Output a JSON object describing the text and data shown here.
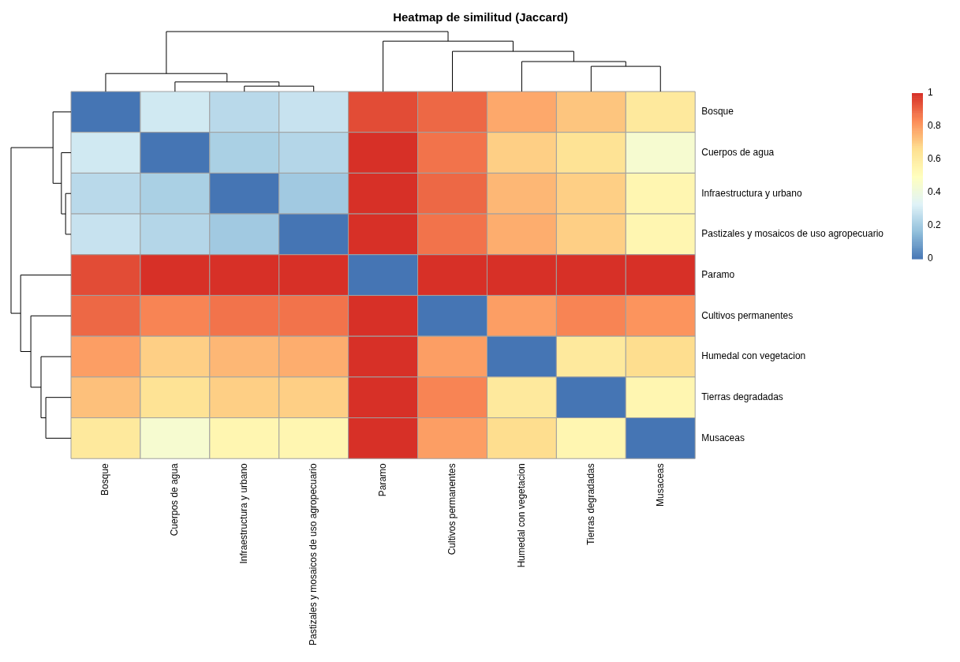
{
  "chart_data": {
    "type": "heatmap",
    "title": "Heatmap de similitud (Jaccard)",
    "categories": [
      "Bosque",
      "Cuerpos de agua",
      "Infraestructura y urbano",
      "Pastizales y mosaicos de uso agropecuario",
      "Paramo",
      "Cultivos permanentes",
      "Humedal con vegetacion",
      "Tierras degradadas",
      "Musaceas"
    ],
    "y_categories": [
      "Bosque",
      "Cuerpos de agua",
      "Infraestructura y urbano",
      "Pastizales y mosaicos de uso agropecuario",
      "Paramo",
      "Cultivos permanentes",
      "Humedal con vegetacion",
      "Tierras degradadas",
      "Musaceas"
    ],
    "cells": [
      [
        0,
        0.3,
        0.25,
        0.28,
        0.95,
        0.9,
        0.78,
        0.72,
        0.62
      ],
      [
        0.3,
        0,
        0.22,
        0.24,
        1,
        0.88,
        0.7,
        0.65,
        0.45
      ],
      [
        0.25,
        0.22,
        0,
        0.2,
        1,
        0.9,
        0.75,
        0.7,
        0.55
      ],
      [
        0.28,
        0.24,
        0.2,
        0,
        1,
        0.88,
        0.77,
        0.7,
        0.55
      ],
      [
        0.95,
        1,
        1,
        1,
        0,
        1,
        1,
        1,
        1
      ],
      [
        0.9,
        0.85,
        0.88,
        0.88,
        1,
        0,
        0.8,
        0.85,
        0.82
      ],
      [
        0.8,
        0.7,
        0.75,
        0.77,
        1,
        0.8,
        0,
        0.62,
        0.67
      ],
      [
        0.73,
        0.65,
        0.7,
        0.7,
        1,
        0.85,
        0.62,
        0,
        0.55
      ],
      [
        0.62,
        0.45,
        0.55,
        0.55,
        1,
        0.8,
        0.67,
        0.55,
        0
      ]
    ],
    "clim": [
      0,
      1
    ],
    "cticks": [
      0,
      0.2,
      0.4,
      0.6,
      0.8,
      1
    ]
  }
}
